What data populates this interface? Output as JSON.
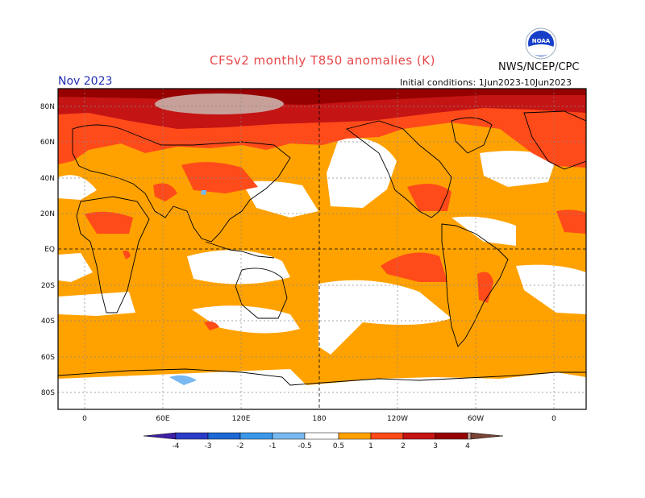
{
  "header": {
    "title": "CFSv2 monthly T850 anomalies (K)",
    "agency": "NWS/NCEP/CPC",
    "month": "Nov 2023",
    "initial_conditions": "Initial conditions: 1Jun2023-10Jun2023",
    "logo_text": "NOAA"
  },
  "map": {
    "lat_labels": [
      "80N",
      "60N",
      "40N",
      "20N",
      "EQ",
      "20S",
      "40S",
      "60S",
      "80S"
    ],
    "lon_labels": [
      "0",
      "60E",
      "120E",
      "180",
      "120W",
      "60W",
      "0"
    ]
  },
  "colorbar": {
    "labels": [
      "-4",
      "-3",
      "-2",
      "-1",
      "-0.5",
      "0.5",
      "1",
      "2",
      "3",
      "4"
    ],
    "colors": {
      "lt_m4": "#3e1fa6",
      "m4_m3": "#2b3cc9",
      "m3_m2": "#1c68d4",
      "m2_m1": "#3b97e8",
      "m1_m05": "#79b8f0",
      "neutral": "#ffffff",
      "p05_1": "#ffa200",
      "p1_2": "#ff4a1a",
      "p2_3": "#c41414",
      "p3_4": "#960000",
      "p4_5": "#c8a09a",
      "gt5": "#7a4436"
    }
  }
}
